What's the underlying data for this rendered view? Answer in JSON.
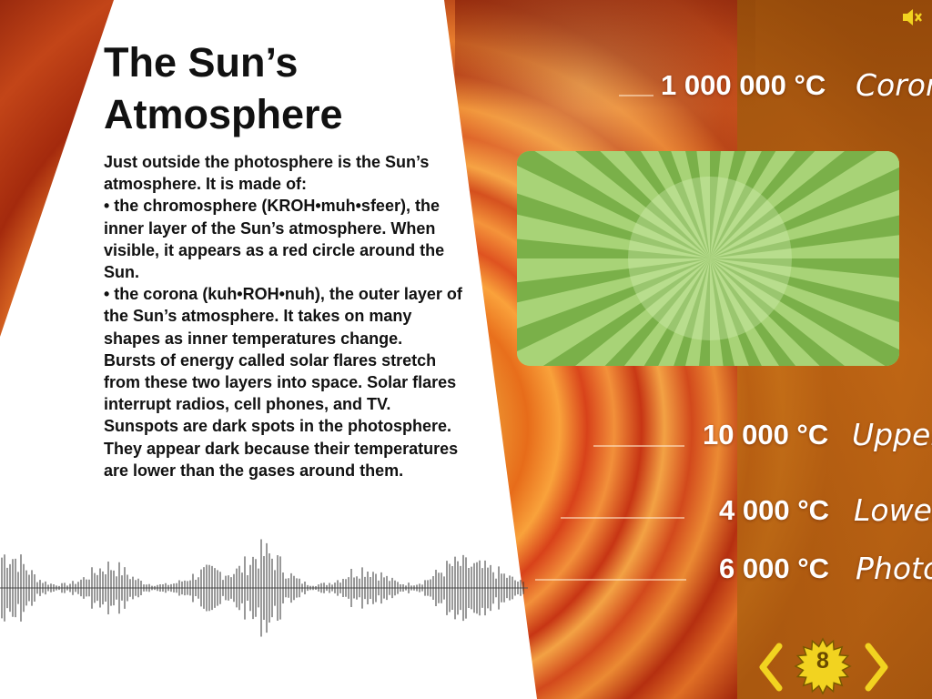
{
  "title_line1": "The Sun’s",
  "title_line2": "Atmosphere",
  "paragraphs": [
    "Just outside the photosphere is the Sun’s atmosphere. It is made of:",
    "• the chromosphere (KROH•muh•sfeer), the inner layer of the Sun’s atmosphere. When visible, it appears as a red circle around the Sun.",
    "• the corona (kuh•ROH•nuh), the outer layer of the Sun’s atmosphere. It takes on many shapes as inner temperatures change.",
    "Bursts of energy called solar flares stretch from these two layers into space. Solar flares interrupt radios, cell phones, and TV. Sunspots are dark spots in the photosphere. They appear dark because their temperatures are lower than the gases around them."
  ],
  "temperatures": [
    {
      "value": "1 000 000 °C",
      "layer": "Corona"
    },
    {
      "value": "10 000 °C",
      "layer": "Upper"
    },
    {
      "value": "4 000 °C",
      "layer": "Lower"
    },
    {
      "value": "6 000 °C",
      "layer": "Photo"
    }
  ],
  "navigation": {
    "page_number": "8",
    "prev_icon": "chevron-left-icon",
    "next_icon": "chevron-right-icon",
    "badge_icon": "starburst-badge-icon"
  },
  "audio": {
    "icon": "speaker-muted-icon"
  },
  "colors": {
    "nav_yellow": "#f2d320",
    "title_text": "#111111",
    "media_green_light": "#a8d377",
    "media_green_dark": "#6ba43a",
    "temp_text": "#ffffff"
  }
}
